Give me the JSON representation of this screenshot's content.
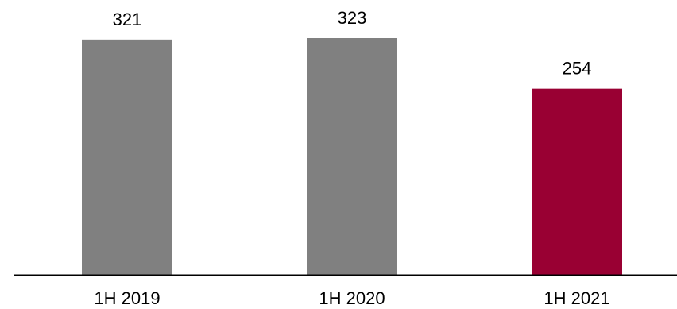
{
  "chart_data": {
    "type": "bar",
    "categories": [
      "1H 2019",
      "1H 2020",
      "1H 2021"
    ],
    "values": [
      321,
      323,
      254
    ],
    "value_labels": [
      "321",
      "323",
      "254"
    ],
    "colors": [
      "#808080",
      "#808080",
      "#990033"
    ],
    "axis_color": "#000000",
    "ylim": [
      0,
      323
    ],
    "grid": false,
    "legend": false
  }
}
